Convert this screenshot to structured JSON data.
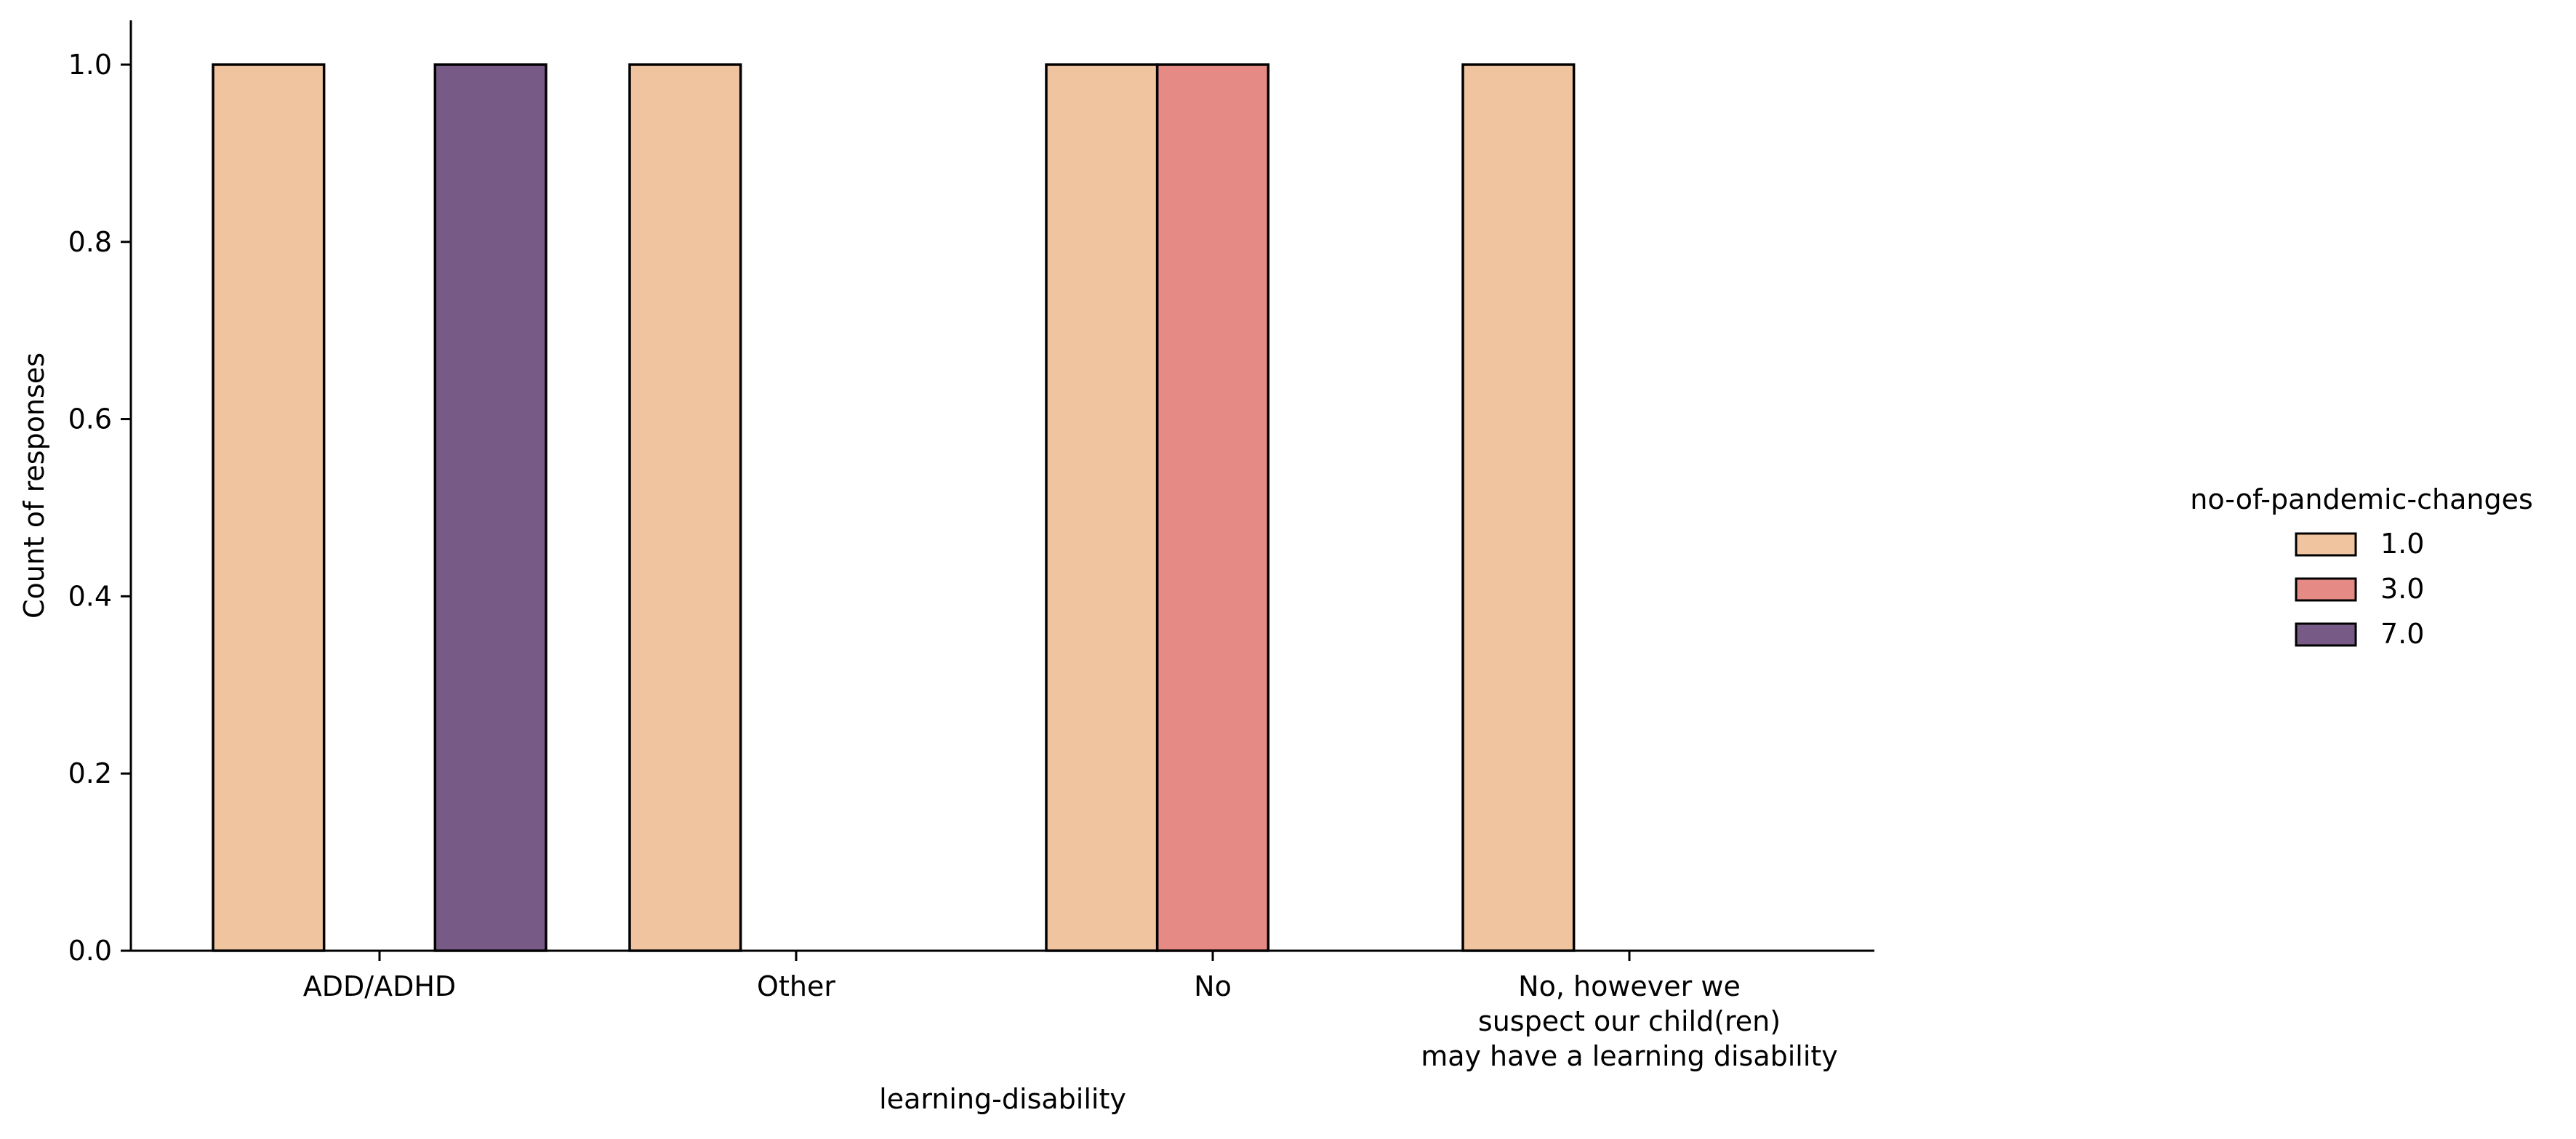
{
  "chart_data": {
    "type": "bar",
    "title": "",
    "xlabel": "learning-disability",
    "ylabel": "Count of responses",
    "categories": [
      [
        "ADD/ADHD"
      ],
      [
        "Other"
      ],
      [
        "No"
      ],
      [
        "No, however we",
        "suspect our child(ren)",
        "may have a learning disability"
      ]
    ],
    "legend": {
      "title": "no-of-pandemic-changes",
      "position": "right"
    },
    "series": [
      {
        "name": "1.0",
        "color": "#f0c49f",
        "values": [
          1,
          1,
          1,
          1
        ]
      },
      {
        "name": "3.0",
        "color": "#e68a86",
        "values": [
          0,
          0,
          1,
          0
        ]
      },
      {
        "name": "7.0",
        "color": "#775b86",
        "values": [
          1,
          0,
          0,
          0
        ]
      }
    ],
    "ylim": [
      0,
      1.05
    ],
    "yticks": [
      "0.0",
      "0.2",
      "0.4",
      "0.6",
      "0.8",
      "1.0"
    ],
    "grid": false
  }
}
